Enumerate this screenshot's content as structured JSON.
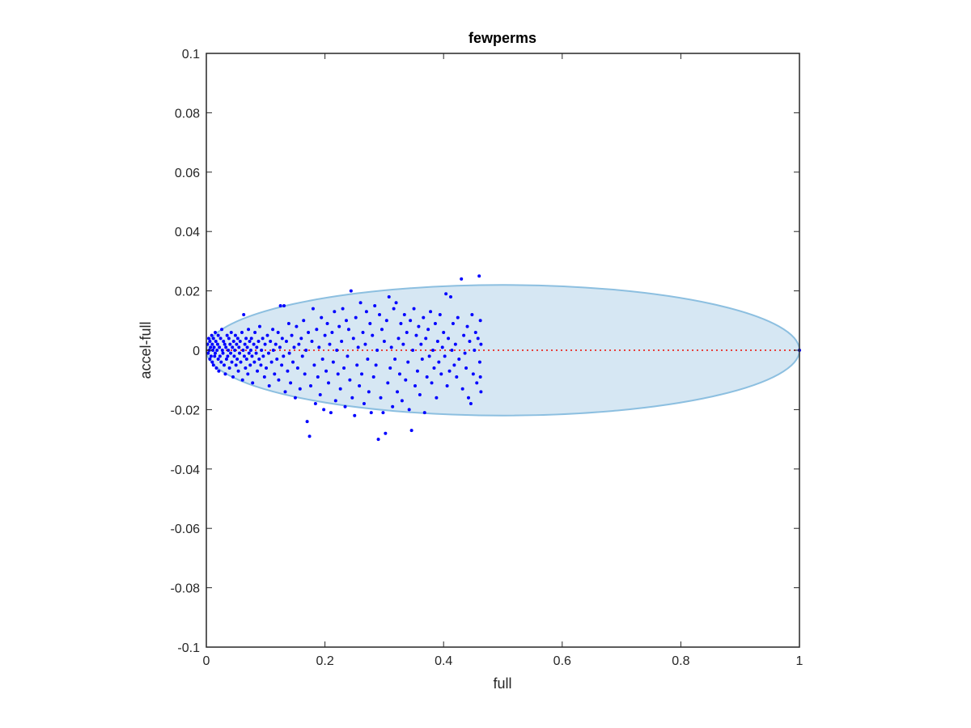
{
  "chart_data": {
    "type": "scatter",
    "title": "fewperms",
    "xlabel": "full",
    "ylabel": "accel-full",
    "xlim": [
      0,
      1
    ],
    "ylim": [
      -0.1,
      0.1
    ],
    "xticks": [
      "0",
      "0.2",
      "0.4",
      "0.6",
      "0.8",
      "1"
    ],
    "yticks": [
      "-0.1",
      "-0.08",
      "-0.06",
      "-0.04",
      "-0.02",
      "0",
      "0.02",
      "0.04",
      "0.06",
      "0.08",
      "0.1"
    ],
    "grid": false,
    "colors": {
      "points": "#0000ff",
      "reference_line": "#e8413c",
      "ellipse_fill": "#d6e7f3",
      "ellipse_stroke": "#8cbfe0"
    },
    "reference_line": {
      "x": [
        0,
        1
      ],
      "y": [
        0,
        0
      ],
      "style": "dotted"
    },
    "ellipse": {
      "center": [
        0.5,
        0
      ],
      "x_radius": 0.5,
      "y_radius": 0.022
    },
    "series": [
      {
        "points": [
          [
            0.002,
            0.002
          ],
          [
            0.003,
            -0.001
          ],
          [
            0.004,
            0.004
          ],
          [
            0.005,
            0.0
          ],
          [
            0.006,
            -0.003
          ],
          [
            0.006,
            0.003
          ],
          [
            0.007,
            0.001
          ],
          [
            0.008,
            -0.002
          ],
          [
            0.009,
            0.005
          ],
          [
            0.01,
            -0.004
          ],
          [
            0.01,
            0.002
          ],
          [
            0.011,
            0.0
          ],
          [
            0.012,
            -0.005
          ],
          [
            0.012,
            0.004
          ],
          [
            0.013,
            0.001
          ],
          [
            0.014,
            -0.002
          ],
          [
            0.015,
            0.006
          ],
          [
            0.015,
            -0.001
          ],
          [
            0.016,
            0.003
          ],
          [
            0.017,
            -0.006
          ],
          [
            0.018,
            0.0
          ],
          [
            0.019,
            0.002
          ],
          [
            0.02,
            -0.003
          ],
          [
            0.02,
            0.005
          ],
          [
            0.021,
            -0.007
          ],
          [
            0.022,
            0.001
          ],
          [
            0.023,
            -0.002
          ],
          [
            0.024,
            0.004
          ],
          [
            0.025,
            -0.004
          ],
          [
            0.026,
            0.007
          ],
          [
            0.027,
            0.0
          ],
          [
            0.028,
            -0.001
          ],
          [
            0.029,
            0.003
          ],
          [
            0.03,
            -0.005
          ],
          [
            0.031,
            0.002
          ],
          [
            0.032,
            -0.008
          ],
          [
            0.033,
            0.001
          ],
          [
            0.034,
            -0.003
          ],
          [
            0.035,
            0.005
          ],
          [
            0.036,
            -0.002
          ],
          [
            0.037,
            0.0
          ],
          [
            0.038,
            0.004
          ],
          [
            0.039,
            -0.006
          ],
          [
            0.04,
            0.002
          ],
          [
            0.041,
            -0.001
          ],
          [
            0.042,
            0.006
          ],
          [
            0.043,
            -0.004
          ],
          [
            0.044,
            0.001
          ],
          [
            0.045,
            -0.009
          ],
          [
            0.046,
            0.003
          ],
          [
            0.047,
            -0.002
          ],
          [
            0.048,
            0.0
          ],
          [
            0.049,
            0.005
          ],
          [
            0.05,
            -0.005
          ],
          [
            0.051,
            0.002
          ],
          [
            0.052,
            -0.003
          ],
          [
            0.053,
            0.004
          ],
          [
            0.054,
            -0.007
          ],
          [
            0.055,
            0.001
          ],
          [
            0.056,
            -0.001
          ],
          [
            0.057,
            0.003
          ],
          [
            0.058,
            -0.004
          ],
          [
            0.06,
            0.006
          ],
          [
            0.061,
            -0.01
          ],
          [
            0.062,
            0.0
          ],
          [
            0.063,
            0.012
          ],
          [
            0.064,
            -0.002
          ],
          [
            0.065,
            0.002
          ],
          [
            0.066,
            -0.006
          ],
          [
            0.067,
            0.004
          ],
          [
            0.068,
            -0.003
          ],
          [
            0.069,
            0.001
          ],
          [
            0.07,
            -0.008
          ],
          [
            0.071,
            0.007
          ],
          [
            0.072,
            -0.001
          ],
          [
            0.073,
            0.003
          ],
          [
            0.074,
            -0.005
          ],
          [
            0.075,
            0.0
          ],
          [
            0.076,
            0.004
          ],
          [
            0.077,
            -0.002
          ],
          [
            0.078,
            -0.011
          ],
          [
            0.08,
            0.002
          ],
          [
            0.081,
            -0.004
          ],
          [
            0.082,
            0.006
          ],
          [
            0.084,
            -0.001
          ],
          [
            0.085,
            0.001
          ],
          [
            0.086,
            -0.007
          ],
          [
            0.088,
            0.003
          ],
          [
            0.089,
            -0.003
          ],
          [
            0.09,
            0.008
          ],
          [
            0.092,
            -0.005
          ],
          [
            0.093,
            0.0
          ],
          [
            0.095,
            0.004
          ],
          [
            0.096,
            -0.002
          ],
          [
            0.098,
            -0.009
          ],
          [
            0.099,
            0.002
          ],
          [
            0.101,
            -0.006
          ],
          [
            0.103,
            0.005
          ],
          [
            0.105,
            -0.001
          ],
          [
            0.106,
            -0.012
          ],
          [
            0.108,
            0.003
          ],
          [
            0.11,
            -0.004
          ],
          [
            0.112,
            0.007
          ],
          [
            0.113,
            0.0
          ],
          [
            0.115,
            -0.008
          ],
          [
            0.117,
            0.002
          ],
          [
            0.119,
            -0.003
          ],
          [
            0.121,
            0.006
          ],
          [
            0.122,
            -0.01
          ],
          [
            0.124,
            0.001
          ],
          [
            0.125,
            0.015
          ],
          [
            0.127,
            -0.005
          ],
          [
            0.128,
            0.004
          ],
          [
            0.13,
            -0.002
          ],
          [
            0.131,
            0.015
          ],
          [
            0.133,
            -0.014
          ],
          [
            0.135,
            0.003
          ],
          [
            0.137,
            -0.007
          ],
          [
            0.139,
            0.009
          ],
          [
            0.14,
            -0.001
          ],
          [
            0.142,
            -0.011
          ],
          [
            0.144,
            0.005
          ],
          [
            0.146,
            -0.004
          ],
          [
            0.148,
            0.001
          ],
          [
            0.15,
            -0.016
          ],
          [
            0.152,
            0.008
          ],
          [
            0.154,
            -0.006
          ],
          [
            0.156,
            0.002
          ],
          [
            0.158,
            -0.013
          ],
          [
            0.16,
            0.004
          ],
          [
            0.162,
            -0.002
          ],
          [
            0.164,
            0.01
          ],
          [
            0.166,
            -0.008
          ],
          [
            0.168,
            0.0
          ],
          [
            0.17,
            -0.024
          ],
          [
            0.172,
            0.006
          ],
          [
            0.174,
            -0.029
          ],
          [
            0.176,
            -0.012
          ],
          [
            0.178,
            0.003
          ],
          [
            0.18,
            0.014
          ],
          [
            0.182,
            -0.005
          ],
          [
            0.184,
            -0.018
          ],
          [
            0.186,
            0.007
          ],
          [
            0.188,
            -0.009
          ],
          [
            0.19,
            0.001
          ],
          [
            0.192,
            -0.015
          ],
          [
            0.194,
            0.011
          ],
          [
            0.196,
            -0.003
          ],
          [
            0.198,
            -0.02
          ],
          [
            0.2,
            0.005
          ],
          [
            0.202,
            -0.007
          ],
          [
            0.204,
            0.009
          ],
          [
            0.206,
            -0.011
          ],
          [
            0.208,
            0.002
          ],
          [
            0.21,
            -0.021
          ],
          [
            0.212,
            0.006
          ],
          [
            0.214,
            -0.004
          ],
          [
            0.216,
            0.013
          ],
          [
            0.218,
            -0.017
          ],
          [
            0.22,
            0.0
          ],
          [
            0.222,
            -0.008
          ],
          [
            0.224,
            0.008
          ],
          [
            0.226,
            -0.013
          ],
          [
            0.228,
            0.003
          ],
          [
            0.23,
            0.014
          ],
          [
            0.232,
            -0.006
          ],
          [
            0.234,
            -0.019
          ],
          [
            0.236,
            0.01
          ],
          [
            0.238,
            -0.002
          ],
          [
            0.24,
            0.007
          ],
          [
            0.242,
            -0.01
          ],
          [
            0.244,
            0.02
          ],
          [
            0.246,
            -0.016
          ],
          [
            0.248,
            0.004
          ],
          [
            0.25,
            -0.022
          ],
          [
            0.252,
            0.011
          ],
          [
            0.254,
            -0.005
          ],
          [
            0.256,
            0.001
          ],
          [
            0.258,
            -0.012
          ],
          [
            0.26,
            0.016
          ],
          [
            0.262,
            -0.008
          ],
          [
            0.264,
            0.006
          ],
          [
            0.266,
            -0.018
          ],
          [
            0.268,
            0.002
          ],
          [
            0.27,
            0.013
          ],
          [
            0.272,
            -0.003
          ],
          [
            0.274,
            -0.014
          ],
          [
            0.276,
            0.009
          ],
          [
            0.278,
            -0.021
          ],
          [
            0.28,
            0.005
          ],
          [
            0.282,
            -0.009
          ],
          [
            0.284,
            0.015
          ],
          [
            0.286,
            -0.005
          ],
          [
            0.288,
            0.0
          ],
          [
            0.29,
            -0.03
          ],
          [
            0.292,
            0.012
          ],
          [
            0.294,
            -0.016
          ],
          [
            0.296,
            0.007
          ],
          [
            0.298,
            -0.021
          ],
          [
            0.3,
            0.003
          ],
          [
            0.302,
            -0.028
          ],
          [
            0.304,
            0.01
          ],
          [
            0.306,
            -0.011
          ],
          [
            0.308,
            0.018
          ],
          [
            0.31,
            -0.006
          ],
          [
            0.312,
            0.001
          ],
          [
            0.314,
            -0.019
          ],
          [
            0.316,
            0.014
          ],
          [
            0.318,
            -0.003
          ],
          [
            0.32,
            0.016
          ],
          [
            0.322,
            -0.014
          ],
          [
            0.324,
            0.004
          ],
          [
            0.326,
            -0.008
          ],
          [
            0.328,
            0.009
          ],
          [
            0.33,
            -0.017
          ],
          [
            0.332,
            0.002
          ],
          [
            0.334,
            0.012
          ],
          [
            0.336,
            -0.01
          ],
          [
            0.338,
            0.006
          ],
          [
            0.34,
            -0.004
          ],
          [
            0.342,
            -0.02
          ],
          [
            0.344,
            0.01
          ],
          [
            0.346,
            -0.027
          ],
          [
            0.348,
            0.0
          ],
          [
            0.35,
            0.014
          ],
          [
            0.352,
            -0.012
          ],
          [
            0.354,
            0.005
          ],
          [
            0.356,
            -0.007
          ],
          [
            0.358,
            0.008
          ],
          [
            0.36,
            -0.015
          ],
          [
            0.362,
            0.002
          ],
          [
            0.364,
            -0.003
          ],
          [
            0.366,
            0.011
          ],
          [
            0.368,
            -0.021
          ],
          [
            0.37,
            0.004
          ],
          [
            0.372,
            -0.009
          ],
          [
            0.374,
            0.007
          ],
          [
            0.376,
            -0.002
          ],
          [
            0.378,
            0.013
          ],
          [
            0.38,
            -0.011
          ],
          [
            0.382,
            0.0
          ],
          [
            0.384,
            -0.006
          ],
          [
            0.386,
            0.009
          ],
          [
            0.388,
            -0.016
          ],
          [
            0.39,
            0.003
          ],
          [
            0.392,
            -0.004
          ],
          [
            0.394,
            0.012
          ],
          [
            0.396,
            -0.008
          ],
          [
            0.398,
            0.001
          ],
          [
            0.4,
            0.006
          ],
          [
            0.402,
            -0.002
          ],
          [
            0.404,
            0.019
          ],
          [
            0.406,
            -0.012
          ],
          [
            0.408,
            0.004
          ],
          [
            0.41,
            -0.007
          ],
          [
            0.412,
            0.018
          ],
          [
            0.414,
            0.0
          ],
          [
            0.416,
            0.009
          ],
          [
            0.418,
            -0.005
          ],
          [
            0.42,
            0.002
          ],
          [
            0.422,
            -0.009
          ],
          [
            0.424,
            0.011
          ],
          [
            0.426,
            -0.003
          ],
          [
            0.43,
            0.024
          ],
          [
            0.432,
            -0.013
          ],
          [
            0.434,
            0.005
          ],
          [
            0.436,
            -0.001
          ],
          [
            0.438,
            -0.006
          ],
          [
            0.44,
            0.008
          ],
          [
            0.442,
            -0.016
          ],
          [
            0.444,
            0.003
          ],
          [
            0.446,
            -0.018
          ],
          [
            0.448,
            0.012
          ],
          [
            0.45,
            -0.008
          ],
          [
            0.452,
            0.0
          ],
          [
            0.454,
            0.006
          ],
          [
            0.456,
            -0.011
          ],
          [
            0.458,
            0.004
          ],
          [
            0.46,
            0.025
          ],
          [
            0.461,
            -0.004
          ],
          [
            0.462,
            0.01
          ],
          [
            0.462,
            -0.009
          ],
          [
            0.463,
            0.002
          ],
          [
            0.463,
            -0.014
          ]
        ]
      }
    ]
  }
}
